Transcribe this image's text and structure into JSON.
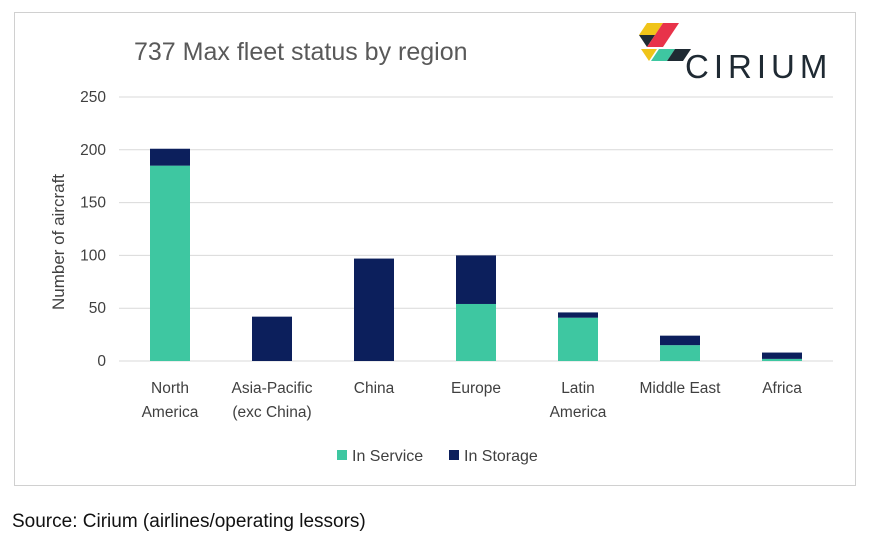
{
  "chart_data": {
    "type": "bar",
    "stacked": true,
    "title": "737 Max fleet status by region",
    "ylabel": "Number of aircraft",
    "xlabel": "",
    "ylim": [
      0,
      250
    ],
    "yticks": [
      0,
      50,
      100,
      150,
      200,
      250
    ],
    "grid": true,
    "legend": "bottom",
    "categories": [
      [
        "North",
        "America"
      ],
      [
        "Asia-Pacific",
        "(exc China)"
      ],
      [
        "China"
      ],
      [
        "Europe"
      ],
      [
        "Latin",
        "America"
      ],
      [
        "Middle East"
      ],
      [
        "Africa"
      ]
    ],
    "series": [
      {
        "name": "In Service",
        "color": "#3ec7a1",
        "values": [
          185,
          0,
          0,
          54,
          41,
          15,
          2
        ]
      },
      {
        "name": "In Storage",
        "color": "#0c1f5c",
        "values": [
          16,
          42,
          97,
          46,
          5,
          9,
          6
        ]
      }
    ]
  },
  "brand": {
    "name": "CIRIUM",
    "icon": "cirium-logo-icon"
  },
  "source": "Source: Cirium (airlines/operating lessors)"
}
